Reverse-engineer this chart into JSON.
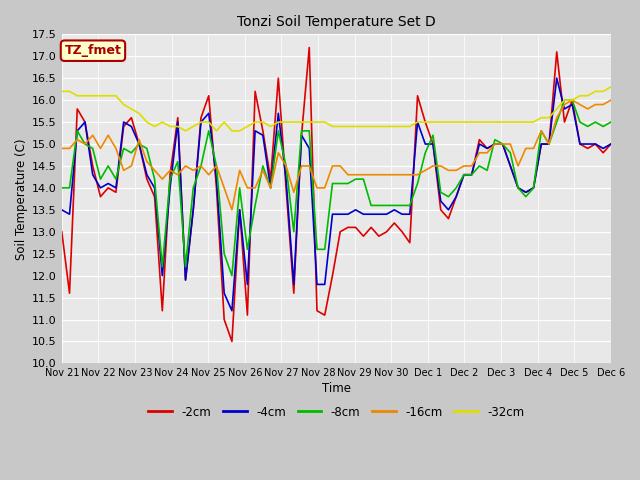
{
  "title": "Tonzi Soil Temperature Set D",
  "xlabel": "Time",
  "ylabel": "Soil Temperature (C)",
  "ylim": [
    10.0,
    17.5
  ],
  "fig_facecolor": "#c8c8c8",
  "plot_facecolor": "#e8e8e8",
  "annotation_text": "TZ_fmet",
  "annotation_bg": "#ffffcc",
  "annotation_border": "#aa0000",
  "legend_entries": [
    "-2cm",
    "-4cm",
    "-8cm",
    "-16cm",
    "-32cm"
  ],
  "line_colors": [
    "#dd0000",
    "#0000cc",
    "#00bb00",
    "#ee8800",
    "#dddd00"
  ],
  "x_tick_labels": [
    "Nov 21",
    "Nov 22",
    "Nov 23",
    "Nov 24",
    "Nov 25",
    "Nov 26",
    "Nov 27",
    "Nov 28",
    "Nov 29",
    "Nov 30",
    "Dec 1",
    "Dec 2",
    "Dec 3",
    "Dec 4",
    "Dec 5",
    "Dec 6"
  ],
  "n_days": 16,
  "series": {
    "d2cm": [
      13.0,
      11.6,
      15.8,
      15.5,
      14.5,
      13.8,
      14.0,
      13.9,
      15.4,
      15.6,
      15.0,
      14.2,
      13.8,
      11.2,
      14.3,
      15.6,
      11.9,
      13.5,
      15.6,
      16.1,
      14.0,
      11.0,
      10.5,
      13.5,
      11.1,
      16.2,
      15.3,
      14.2,
      16.5,
      14.0,
      11.6,
      15.2,
      17.2,
      11.2,
      11.1,
      12.0,
      13.0,
      13.1,
      13.1,
      12.9,
      13.1,
      12.9,
      13.0,
      13.2,
      13.0,
      12.75,
      16.1,
      15.5,
      15.0,
      13.5,
      13.3,
      13.8,
      14.3,
      14.3,
      15.1,
      14.9,
      15.0,
      15.0,
      14.5,
      14.0,
      13.9,
      14.0,
      15.0,
      15.0,
      17.1,
      15.5,
      16.0,
      15.0,
      14.9,
      15.0,
      14.8,
      15.0
    ],
    "d4cm": [
      13.5,
      13.4,
      15.3,
      15.5,
      14.3,
      14.0,
      14.1,
      14.0,
      15.5,
      15.4,
      15.0,
      14.3,
      14.0,
      12.0,
      14.0,
      15.5,
      11.9,
      13.5,
      15.5,
      15.7,
      14.2,
      11.6,
      11.2,
      13.5,
      11.8,
      15.3,
      15.2,
      14.0,
      15.7,
      14.2,
      11.8,
      15.2,
      14.9,
      11.8,
      11.8,
      13.4,
      13.4,
      13.4,
      13.5,
      13.4,
      13.4,
      13.4,
      13.4,
      13.5,
      13.4,
      13.4,
      15.5,
      15.0,
      15.0,
      13.7,
      13.5,
      13.8,
      14.3,
      14.3,
      15.0,
      14.9,
      15.0,
      15.0,
      14.5,
      14.0,
      13.9,
      14.0,
      15.0,
      15.0,
      16.5,
      15.8,
      15.9,
      15.0,
      15.0,
      15.0,
      14.9,
      15.0
    ],
    "d8cm": [
      14.0,
      14.0,
      15.3,
      15.0,
      14.9,
      14.2,
      14.5,
      14.2,
      14.9,
      14.8,
      15.0,
      14.9,
      14.2,
      12.2,
      14.2,
      14.6,
      12.2,
      14.0,
      14.5,
      15.3,
      14.5,
      12.5,
      12.0,
      14.0,
      12.6,
      13.6,
      14.5,
      14.0,
      15.3,
      14.5,
      13.0,
      15.3,
      15.3,
      12.6,
      12.6,
      14.1,
      14.1,
      14.1,
      14.2,
      14.2,
      13.6,
      13.6,
      13.6,
      13.6,
      13.6,
      13.6,
      14.1,
      14.8,
      15.2,
      13.9,
      13.8,
      14.0,
      14.3,
      14.3,
      14.5,
      14.4,
      15.1,
      15.0,
      14.8,
      14.0,
      13.8,
      14.0,
      15.3,
      15.0,
      15.5,
      16.0,
      16.0,
      15.5,
      15.4,
      15.5,
      15.4,
      15.5
    ],
    "d16cm": [
      14.9,
      14.9,
      15.1,
      15.0,
      15.2,
      14.9,
      15.2,
      14.9,
      14.4,
      14.5,
      15.1,
      14.6,
      14.4,
      14.2,
      14.4,
      14.3,
      14.5,
      14.4,
      14.5,
      14.3,
      14.5,
      14.0,
      13.5,
      14.4,
      14.0,
      14.0,
      14.4,
      14.0,
      14.8,
      14.5,
      13.9,
      14.5,
      14.5,
      14.0,
      14.0,
      14.5,
      14.5,
      14.3,
      14.3,
      14.3,
      14.3,
      14.3,
      14.3,
      14.3,
      14.3,
      14.3,
      14.3,
      14.4,
      14.5,
      14.5,
      14.4,
      14.4,
      14.5,
      14.5,
      14.8,
      14.8,
      15.0,
      15.0,
      15.0,
      14.5,
      14.9,
      14.9,
      15.3,
      15.0,
      15.6,
      15.9,
      16.0,
      15.9,
      15.8,
      15.9,
      15.9,
      16.0
    ],
    "d32cm": [
      16.2,
      16.2,
      16.1,
      16.1,
      16.1,
      16.1,
      16.1,
      16.1,
      15.9,
      15.8,
      15.7,
      15.5,
      15.4,
      15.5,
      15.4,
      15.4,
      15.3,
      15.4,
      15.5,
      15.5,
      15.3,
      15.5,
      15.3,
      15.3,
      15.4,
      15.5,
      15.5,
      15.4,
      15.5,
      15.5,
      15.5,
      15.5,
      15.5,
      15.5,
      15.5,
      15.4,
      15.4,
      15.4,
      15.4,
      15.4,
      15.4,
      15.4,
      15.4,
      15.4,
      15.4,
      15.4,
      15.5,
      15.5,
      15.5,
      15.5,
      15.5,
      15.5,
      15.5,
      15.5,
      15.5,
      15.5,
      15.5,
      15.5,
      15.5,
      15.5,
      15.5,
      15.5,
      15.6,
      15.6,
      15.8,
      16.0,
      16.0,
      16.1,
      16.1,
      16.2,
      16.2,
      16.3
    ]
  }
}
